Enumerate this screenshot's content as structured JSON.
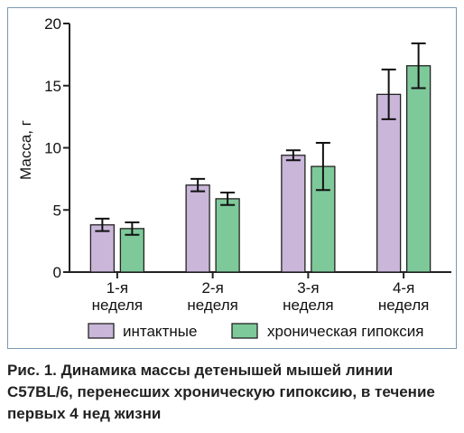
{
  "chart_data": {
    "type": "bar",
    "ylabel": "Масса, г",
    "ylim": [
      0,
      20
    ],
    "yticks": [
      0,
      5,
      10,
      15,
      20
    ],
    "categories": [
      [
        "1-я",
        "неделя"
      ],
      [
        "2-я",
        "неделя"
      ],
      [
        "3-я",
        "неделя"
      ],
      [
        "4-я",
        "неделя"
      ]
    ],
    "series": [
      {
        "name": "интактные",
        "color": "#c9b6d9",
        "values": [
          3.8,
          7.0,
          9.4,
          14.3
        ],
        "errors": [
          0.5,
          0.5,
          0.4,
          2.0
        ]
      },
      {
        "name": "хроническая гипоксия",
        "color": "#7ec99a",
        "values": [
          3.5,
          5.9,
          8.5,
          16.6
        ],
        "errors": [
          0.5,
          0.5,
          1.9,
          1.8
        ]
      }
    ],
    "legend": "bottom",
    "grid": false
  },
  "caption": "Рис. 1. Динамика массы детенышей мышей линии C57BL/6, перенесших хроническую гипоксию, в течение первых 4 нед жизни"
}
